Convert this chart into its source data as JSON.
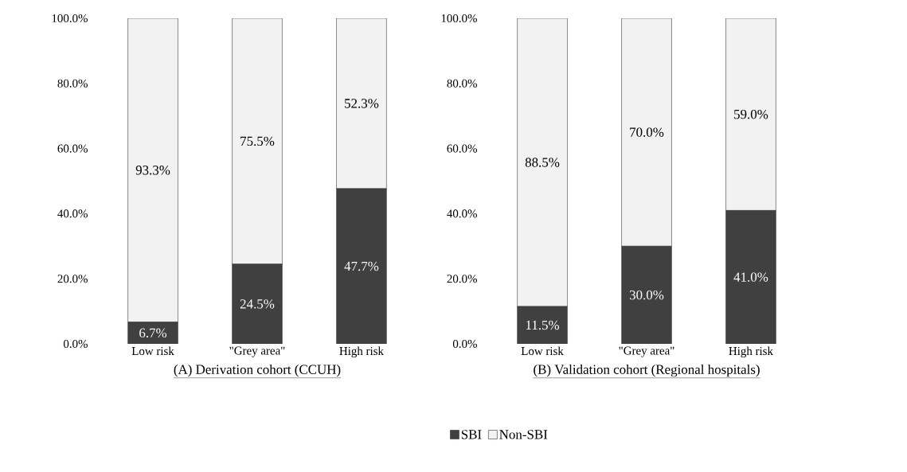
{
  "chart_data": [
    {
      "type": "bar",
      "stacked": true,
      "categories": [
        "Low risk",
        "\"Grey area\"",
        "High risk"
      ],
      "series": [
        {
          "name": "SBI",
          "color": "#404040",
          "values": [
            6.7,
            24.5,
            47.7
          ],
          "value_labels": [
            "6.7%",
            "24.5%",
            "47.7%"
          ]
        },
        {
          "name": "Non-SBI",
          "color": "#f2f2f2",
          "values": [
            93.3,
            75.5,
            52.3
          ],
          "value_labels": [
            "93.3%",
            "75.5%",
            "52.3%"
          ]
        }
      ],
      "ylim": [
        0,
        100
      ],
      "yticks": [
        {
          "value": 0,
          "label": "0.0%"
        },
        {
          "value": 20,
          "label": "20.0%"
        },
        {
          "value": 40,
          "label": "40.0%"
        },
        {
          "value": 60,
          "label": "60.0%"
        },
        {
          "value": 80,
          "label": "80.0%"
        },
        {
          "value": 100,
          "label": "100.0%"
        }
      ],
      "xlabel": "(A) Derivation cohort (CCUH)",
      "legend": "bottom"
    },
    {
      "type": "bar",
      "stacked": true,
      "categories": [
        "Low risk",
        "\"Grey area\"",
        "High risk"
      ],
      "series": [
        {
          "color": "#404040",
          "values": [
            11.5,
            30.0,
            41.0
          ],
          "value_labels": [
            "11.5%",
            "30.0%",
            "41.0%"
          ]
        },
        {
          "color": "#f2f2f2",
          "values": [
            88.5,
            70.0,
            59.0
          ],
          "value_labels": [
            "88.5%",
            "70.0%",
            "59.0%"
          ]
        }
      ],
      "ylim": [
        0,
        100
      ],
      "yticks": [
        {
          "value": 0,
          "label": "0.0%"
        },
        {
          "value": 20,
          "label": "20.0%"
        },
        {
          "value": 40,
          "label": "40.0%"
        },
        {
          "value": 60,
          "label": "60.0%"
        },
        {
          "value": 80,
          "label": "80.0%"
        },
        {
          "value": 100,
          "label": "100.0%"
        }
      ],
      "xlabel": "(B) Validation cohort (Regional hospitals)"
    }
  ]
}
